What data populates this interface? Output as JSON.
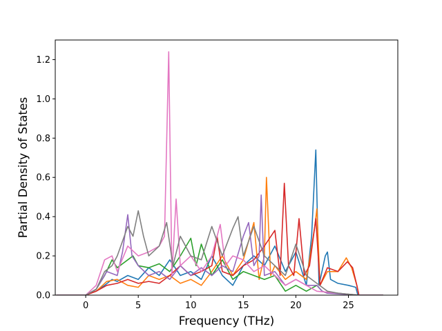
{
  "chart_data": {
    "type": "line",
    "title": "",
    "xlabel": "Frequency (THz)",
    "ylabel": "Partial Density of States",
    "xlim": [
      -2.9,
      29.7
    ],
    "ylim": [
      0,
      1.3
    ],
    "xticks": [
      0,
      5,
      10,
      15,
      20,
      25
    ],
    "yticks": [
      0.0,
      0.2,
      0.4,
      0.6,
      0.8,
      1.0,
      1.2
    ],
    "grid": false,
    "legend": "none",
    "series": [
      {
        "color": "#1f77b4",
        "points": [
          [
            -2.8,
            0
          ],
          [
            0,
            0
          ],
          [
            1,
            0.02
          ],
          [
            1.8,
            0.05
          ],
          [
            2.5,
            0.08
          ],
          [
            3,
            0.07
          ],
          [
            4,
            0.1
          ],
          [
            5,
            0.08
          ],
          [
            6,
            0.14
          ],
          [
            7,
            0.1
          ],
          [
            8,
            0.18
          ],
          [
            9,
            0.1
          ],
          [
            10,
            0.12
          ],
          [
            11,
            0.08
          ],
          [
            12,
            0.2
          ],
          [
            13,
            0.1
          ],
          [
            14,
            0.05
          ],
          [
            15,
            0.15
          ],
          [
            16,
            0.2
          ],
          [
            17,
            0.15
          ],
          [
            18,
            0.25
          ],
          [
            19,
            0.12
          ],
          [
            20,
            0.22
          ],
          [
            21,
            0.05
          ],
          [
            21.5,
            0.3
          ],
          [
            21.9,
            0.74
          ],
          [
            22.2,
            0.05
          ],
          [
            22.8,
            0.2
          ],
          [
            23,
            0.22
          ],
          [
            23.3,
            0.08
          ],
          [
            24,
            0.06
          ],
          [
            25,
            0.05
          ],
          [
            25.7,
            0.04
          ],
          [
            25.9,
            0
          ],
          [
            28.3,
            0
          ]
        ]
      },
      {
        "color": "#ff7f0e",
        "points": [
          [
            -2.8,
            0
          ],
          [
            0,
            0
          ],
          [
            1,
            0.02
          ],
          [
            2,
            0.07
          ],
          [
            3,
            0.08
          ],
          [
            4,
            0.05
          ],
          [
            5,
            0.04
          ],
          [
            6,
            0.1
          ],
          [
            7,
            0.08
          ],
          [
            8,
            0.1
          ],
          [
            9,
            0.06
          ],
          [
            10,
            0.08
          ],
          [
            11,
            0.05
          ],
          [
            12,
            0.12
          ],
          [
            13,
            0.2
          ],
          [
            14,
            0.1
          ],
          [
            15,
            0.18
          ],
          [
            16,
            0.37
          ],
          [
            16.5,
            0.08
          ],
          [
            17,
            0.2
          ],
          [
            17.2,
            0.6
          ],
          [
            17.6,
            0.1
          ],
          [
            18,
            0.15
          ],
          [
            19,
            0.08
          ],
          [
            20,
            0.12
          ],
          [
            21,
            0.08
          ],
          [
            21.8,
            0.35
          ],
          [
            22,
            0.44
          ],
          [
            22.3,
            0.05
          ],
          [
            23,
            0.12
          ],
          [
            24,
            0.12
          ],
          [
            24.8,
            0.19
          ],
          [
            25.3,
            0.14
          ],
          [
            25.8,
            0.05
          ],
          [
            26,
            0
          ],
          [
            28.3,
            0
          ]
        ]
      },
      {
        "color": "#2ca02c",
        "points": [
          [
            -2.8,
            0
          ],
          [
            0,
            0
          ],
          [
            1,
            0.03
          ],
          [
            1.8,
            0.1
          ],
          [
            2.5,
            0.18
          ],
          [
            3,
            0.14
          ],
          [
            4,
            0.18
          ],
          [
            4.5,
            0.2
          ],
          [
            5,
            0.15
          ],
          [
            6,
            0.14
          ],
          [
            7,
            0.16
          ],
          [
            8,
            0.12
          ],
          [
            9,
            0.2
          ],
          [
            10,
            0.29
          ],
          [
            10.5,
            0.15
          ],
          [
            11,
            0.26
          ],
          [
            12,
            0.1
          ],
          [
            13,
            0.18
          ],
          [
            14,
            0.08
          ],
          [
            15,
            0.12
          ],
          [
            16,
            0.1
          ],
          [
            17,
            0.08
          ],
          [
            18,
            0.1
          ],
          [
            19,
            0.02
          ],
          [
            20,
            0.05
          ],
          [
            21,
            0.02
          ],
          [
            22,
            0.05
          ],
          [
            22.5,
            0.02
          ],
          [
            23,
            0.01
          ],
          [
            24,
            0.01
          ],
          [
            26,
            0
          ],
          [
            28.3,
            0
          ]
        ]
      },
      {
        "color": "#d62728",
        "points": [
          [
            -2.8,
            0
          ],
          [
            0,
            0
          ],
          [
            1,
            0.02
          ],
          [
            2,
            0.05
          ],
          [
            3,
            0.06
          ],
          [
            4,
            0.08
          ],
          [
            5,
            0.06
          ],
          [
            6,
            0.07
          ],
          [
            7,
            0.06
          ],
          [
            8,
            0.1
          ],
          [
            9,
            0.15
          ],
          [
            10,
            0.1
          ],
          [
            11,
            0.12
          ],
          [
            12,
            0.15
          ],
          [
            12.5,
            0.3
          ],
          [
            13,
            0.12
          ],
          [
            14,
            0.1
          ],
          [
            15,
            0.15
          ],
          [
            16,
            0.18
          ],
          [
            17,
            0.25
          ],
          [
            18,
            0.33
          ],
          [
            18.5,
            0.1
          ],
          [
            18.9,
            0.57
          ],
          [
            19.3,
            0.15
          ],
          [
            19.8,
            0.1
          ],
          [
            20.3,
            0.39
          ],
          [
            20.8,
            0.1
          ],
          [
            21.3,
            0.15
          ],
          [
            21.9,
            0.39
          ],
          [
            22.3,
            0.05
          ],
          [
            23,
            0.14
          ],
          [
            24,
            0.12
          ],
          [
            24.9,
            0.17
          ],
          [
            25.4,
            0.14
          ],
          [
            25.8,
            0.05
          ],
          [
            26,
            0
          ],
          [
            28.3,
            0
          ]
        ]
      },
      {
        "color": "#9467bd",
        "points": [
          [
            -2.8,
            0
          ],
          [
            0,
            0
          ],
          [
            1,
            0.03
          ],
          [
            2,
            0.12
          ],
          [
            3,
            0.1
          ],
          [
            3.5,
            0.22
          ],
          [
            4,
            0.41
          ],
          [
            4.4,
            0.2
          ],
          [
            5,
            0.15
          ],
          [
            6,
            0.1
          ],
          [
            7,
            0.12
          ],
          [
            8,
            0.08
          ],
          [
            9,
            0.15
          ],
          [
            10,
            0.1
          ],
          [
            11,
            0.14
          ],
          [
            12,
            0.1
          ],
          [
            13,
            0.15
          ],
          [
            14,
            0.12
          ],
          [
            15,
            0.3
          ],
          [
            15.5,
            0.37
          ],
          [
            16,
            0.15
          ],
          [
            16.5,
            0.2
          ],
          [
            16.7,
            0.51
          ],
          [
            17,
            0.1
          ],
          [
            18,
            0.12
          ],
          [
            19,
            0.05
          ],
          [
            20,
            0.08
          ],
          [
            21,
            0.05
          ],
          [
            22,
            0.05
          ],
          [
            22.5,
            0.02
          ],
          [
            23,
            0.01
          ],
          [
            26,
            0
          ],
          [
            28.3,
            0
          ]
        ]
      },
      {
        "color": "#e377c2",
        "points": [
          [
            -2.8,
            0
          ],
          [
            0,
            0
          ],
          [
            1,
            0.05
          ],
          [
            1.8,
            0.18
          ],
          [
            2.5,
            0.2
          ],
          [
            3,
            0.12
          ],
          [
            4,
            0.25
          ],
          [
            5,
            0.2
          ],
          [
            6,
            0.22
          ],
          [
            7,
            0.25
          ],
          [
            7.5,
            0.3
          ],
          [
            7.9,
            1.24
          ],
          [
            8.2,
            0.1
          ],
          [
            8.6,
            0.49
          ],
          [
            9,
            0.15
          ],
          [
            10,
            0.2
          ],
          [
            11,
            0.12
          ],
          [
            12,
            0.2
          ],
          [
            12.8,
            0.36
          ],
          [
            13.3,
            0.15
          ],
          [
            14,
            0.2
          ],
          [
            15,
            0.18
          ],
          [
            16,
            0.12
          ],
          [
            17,
            0.15
          ],
          [
            18,
            0.1
          ],
          [
            19,
            0.05
          ],
          [
            20,
            0.08
          ],
          [
            21,
            0.05
          ],
          [
            22,
            0.02
          ],
          [
            26,
            0
          ],
          [
            28.3,
            0
          ]
        ]
      },
      {
        "color": "#7f7f7f",
        "points": [
          [
            -2.8,
            0
          ],
          [
            0,
            0
          ],
          [
            1,
            0.03
          ],
          [
            1.8,
            0.12
          ],
          [
            2.5,
            0.15
          ],
          [
            3,
            0.2
          ],
          [
            4,
            0.35
          ],
          [
            4.5,
            0.3
          ],
          [
            5,
            0.43
          ],
          [
            5.5,
            0.3
          ],
          [
            6,
            0.2
          ],
          [
            7,
            0.25
          ],
          [
            7.7,
            0.37
          ],
          [
            8.3,
            0.15
          ],
          [
            9,
            0.3
          ],
          [
            10,
            0.2
          ],
          [
            11,
            0.18
          ],
          [
            12,
            0.35
          ],
          [
            13,
            0.2
          ],
          [
            14,
            0.34
          ],
          [
            14.5,
            0.4
          ],
          [
            15,
            0.2
          ],
          [
            16,
            0.35
          ],
          [
            17,
            0.2
          ],
          [
            18,
            0.15
          ],
          [
            19,
            0.1
          ],
          [
            20,
            0.26
          ],
          [
            21,
            0.1
          ],
          [
            22,
            0.06
          ],
          [
            23,
            0.02
          ],
          [
            24,
            0.01
          ],
          [
            26,
            0
          ],
          [
            28.3,
            0
          ]
        ]
      }
    ]
  }
}
